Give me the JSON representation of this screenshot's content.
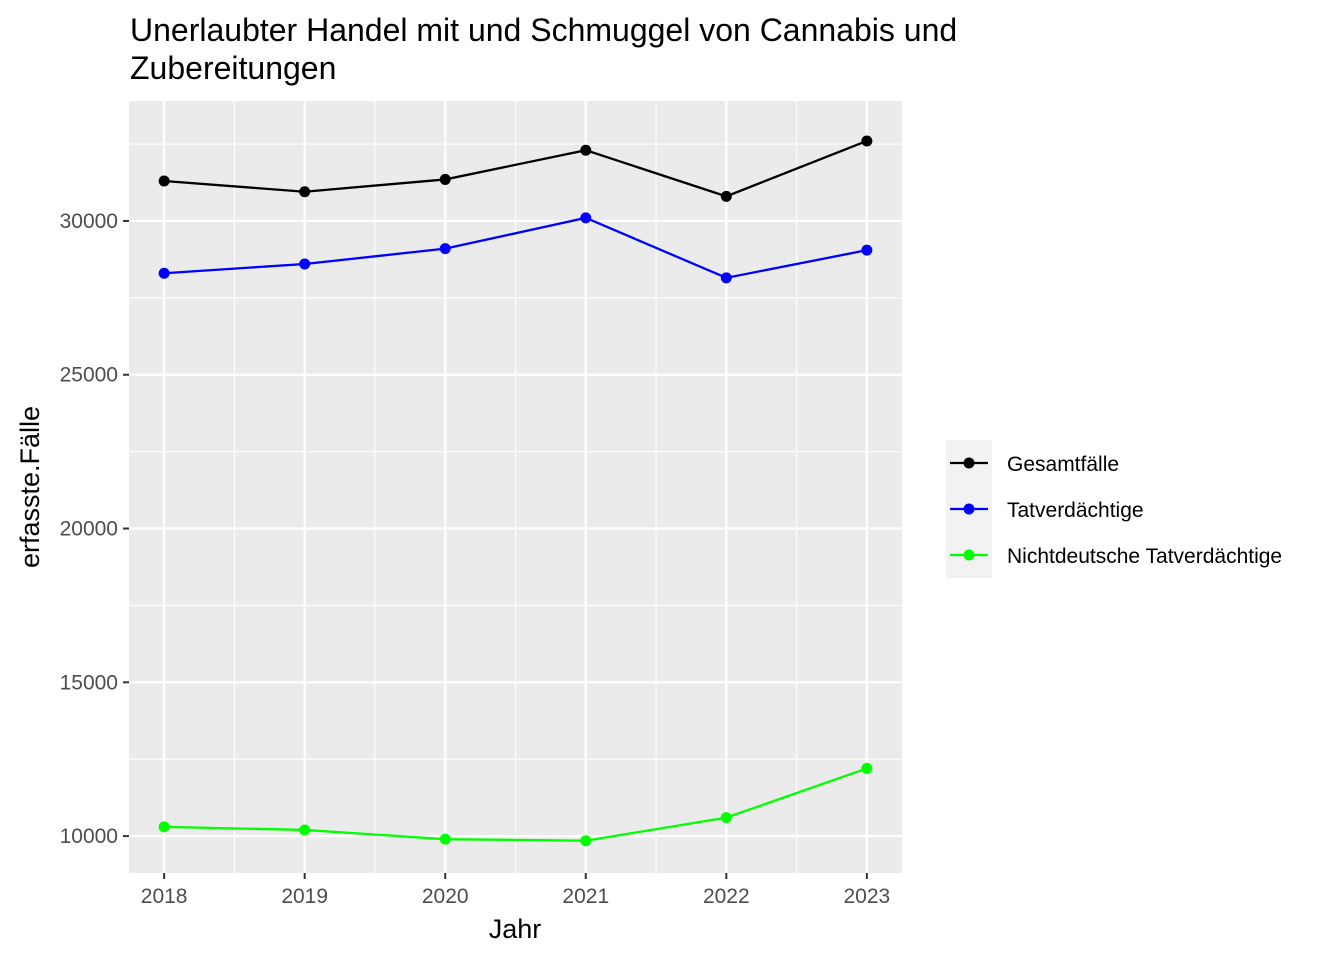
{
  "chart_data": {
    "type": "line",
    "title_lines": [
      "Unerlaubter Handel mit und Schmuggel von Cannabis und",
      "Zubereitungen"
    ],
    "xlabel": "Jahr",
    "ylabel": "erfasste.Fälle",
    "x": [
      2018,
      2019,
      2020,
      2021,
      2022,
      2023
    ],
    "x_ticks": [
      "2018",
      "2019",
      "2020",
      "2021",
      "2022",
      "2023"
    ],
    "y_ticks": [
      10000,
      15000,
      20000,
      25000,
      30000
    ],
    "y_tick_labels": [
      "10000",
      "15000",
      "20000",
      "25000",
      "30000"
    ],
    "xlim": [
      2017.75,
      2023.25
    ],
    "ylim": [
      8800,
      33900
    ],
    "grid": true,
    "legend_position": "right",
    "series": [
      {
        "name": "Gesamtfälle",
        "color": "#000000",
        "values": [
          31300,
          30950,
          31350,
          32300,
          30800,
          32600
        ]
      },
      {
        "name": "Tatverdächtige",
        "color": "#0000ff",
        "values": [
          28300,
          28600,
          29100,
          30100,
          28150,
          29050
        ]
      },
      {
        "name": "Nichtdeutsche Tatverdächtige",
        "color": "#00ff00",
        "values": [
          10300,
          10200,
          9900,
          9850,
          10600,
          12200
        ]
      }
    ]
  }
}
